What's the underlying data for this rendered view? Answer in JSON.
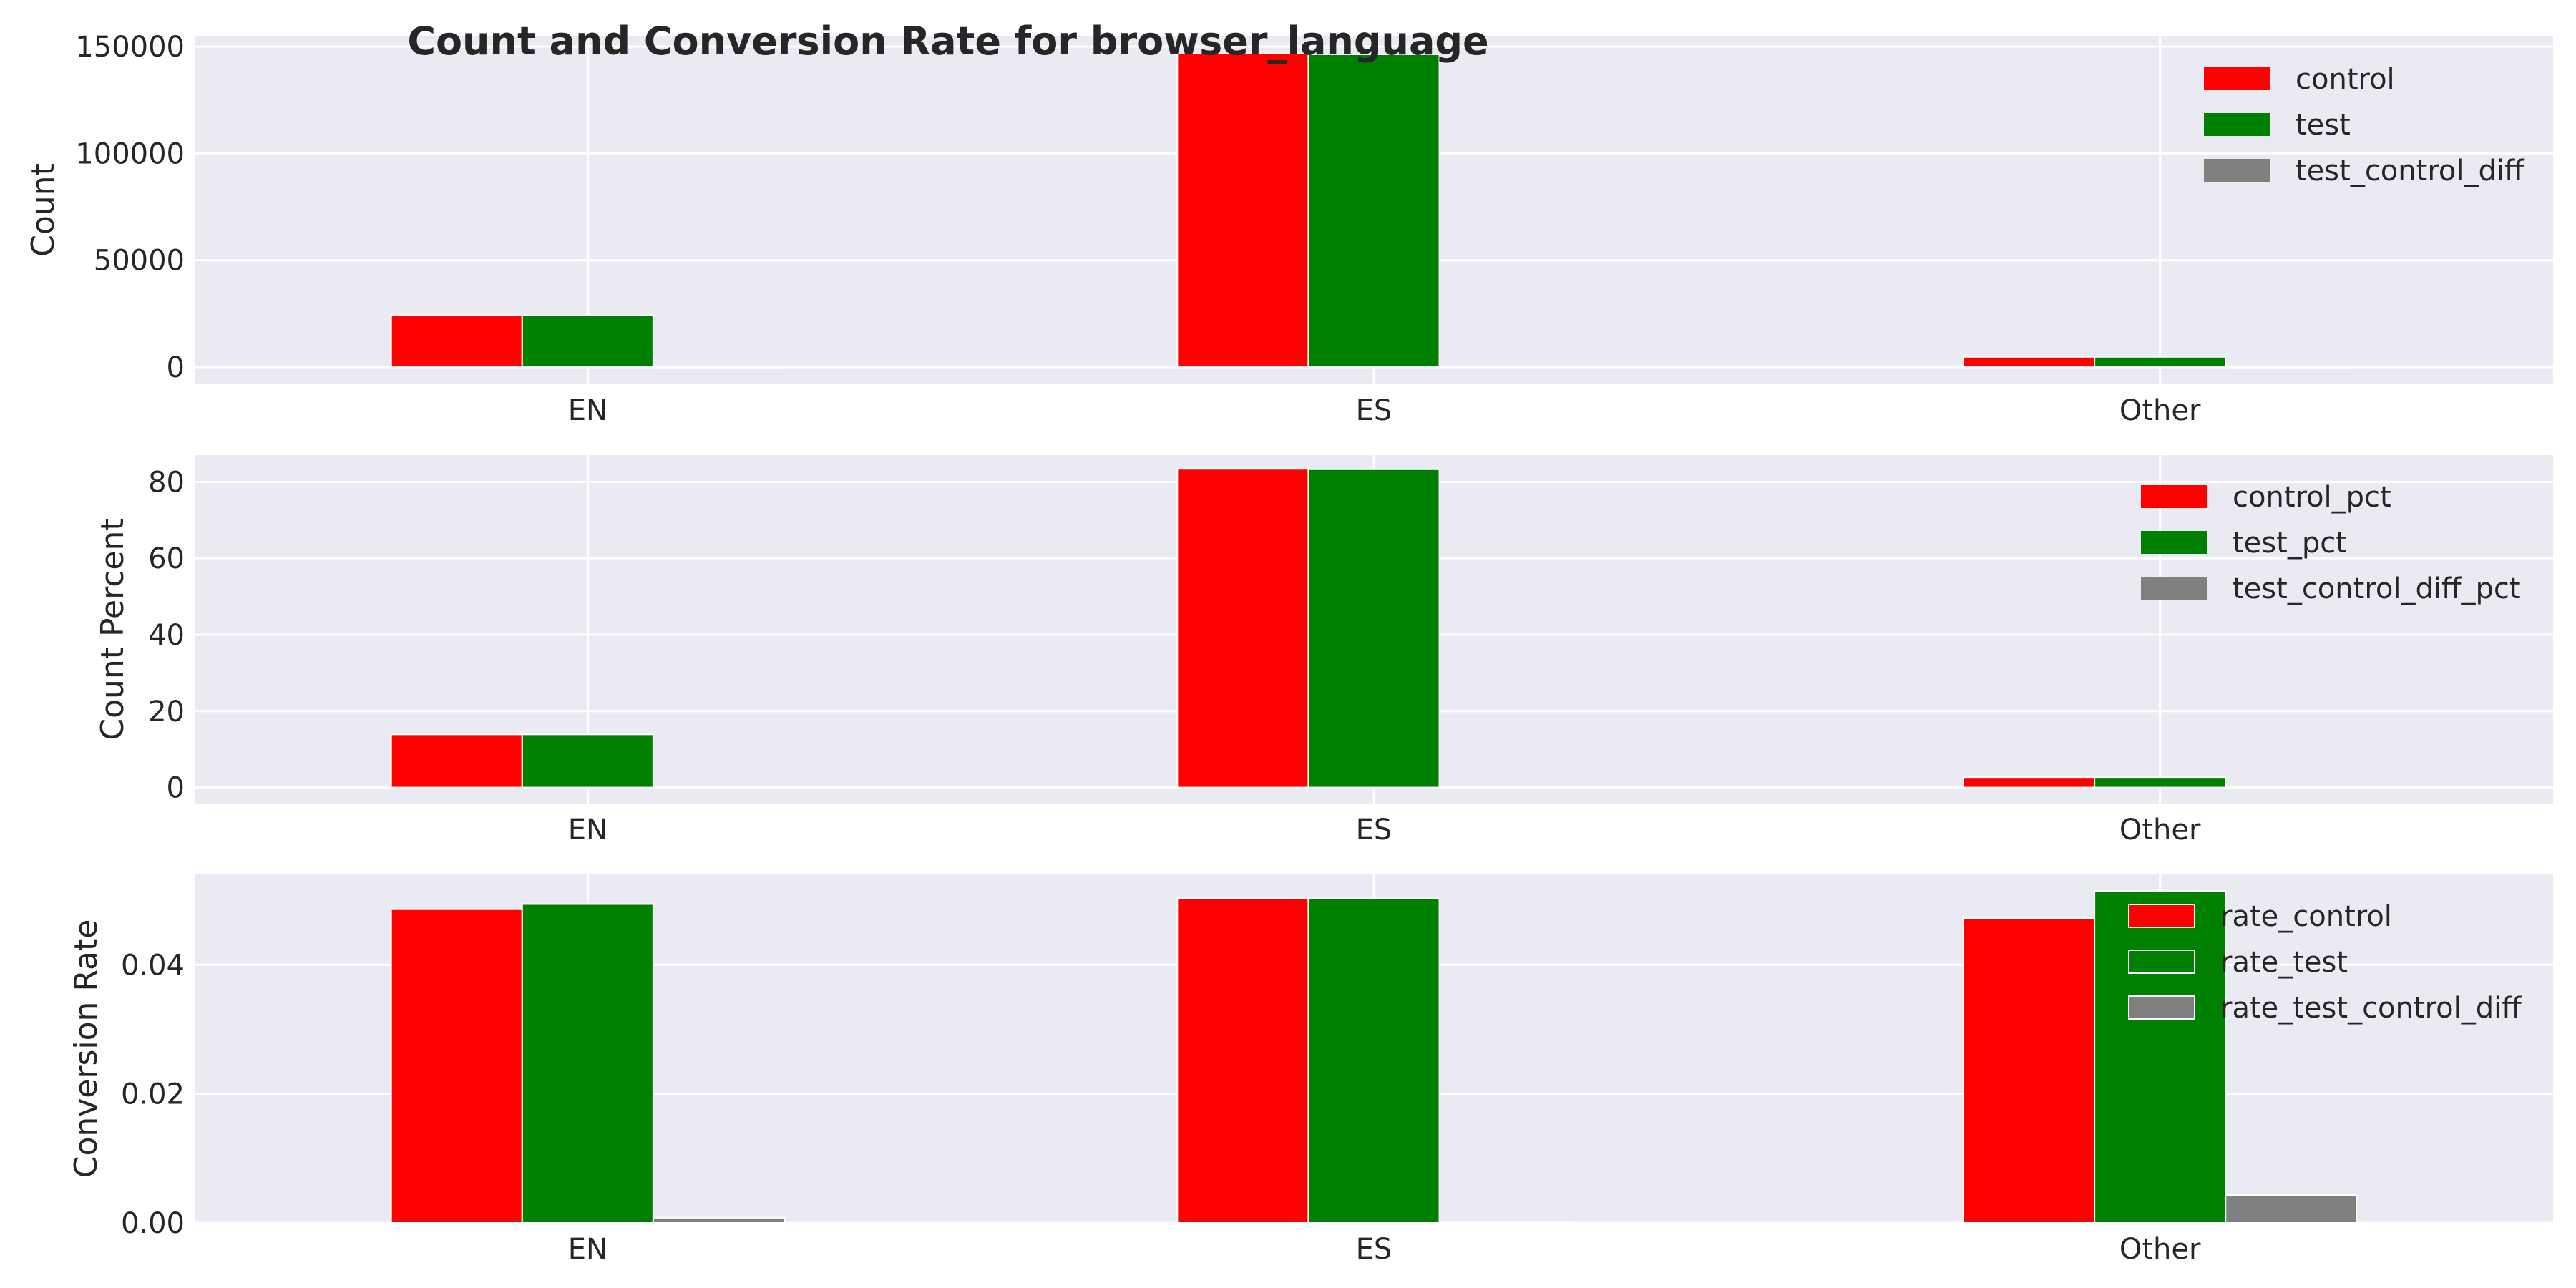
{
  "title": "Count and Conversion Rate for browser_language",
  "colors": {
    "background": "#eaeaf2",
    "grid": "#ffffff",
    "control": "#ff0000",
    "test": "#008000",
    "diff": "#808080"
  },
  "chart_data": [
    {
      "type": "bar",
      "categories": [
        "EN",
        "ES",
        "Other"
      ],
      "ylabel": "Count",
      "ylim": [
        -8000,
        155000
      ],
      "yticks": [
        0,
        50000,
        100000,
        150000
      ],
      "ytick_labels": [
        "0",
        "50000",
        "100000",
        "150000"
      ],
      "grid": true,
      "legend_position": "top-right",
      "series": [
        {
          "name": "control",
          "values": [
            24300,
            146700,
            4800
          ]
        },
        {
          "name": "test",
          "values": [
            24300,
            146300,
            4800
          ]
        },
        {
          "name": "test_control_diff",
          "values": [
            0,
            400,
            0
          ]
        }
      ]
    },
    {
      "type": "bar",
      "categories": [
        "EN",
        "ES",
        "Other"
      ],
      "ylabel": "Count Percent",
      "ylim": [
        -4.2,
        87
      ],
      "yticks": [
        0,
        20,
        40,
        60,
        80
      ],
      "ytick_labels": [
        "0",
        "20",
        "40",
        "60",
        "80"
      ],
      "grid": true,
      "legend_position": "top-right",
      "series": [
        {
          "name": "control_pct",
          "values": [
            13.9,
            83.4,
            2.7
          ]
        },
        {
          "name": "test_pct",
          "values": [
            13.9,
            83.3,
            2.7
          ]
        },
        {
          "name": "test_control_diff_pct",
          "values": [
            0,
            0.1,
            0
          ]
        }
      ]
    },
    {
      "type": "bar",
      "categories": [
        "EN",
        "ES",
        "Other"
      ],
      "ylabel": "Conversion Rate",
      "ylim": [
        0,
        0.054
      ],
      "yticks": [
        0,
        0.02,
        0.04
      ],
      "ytick_labels": [
        "0.00",
        "0.02",
        "0.04"
      ],
      "grid": true,
      "legend_position": "top-right",
      "series": [
        {
          "name": "rate_control",
          "values": [
            0.0486,
            0.0503,
            0.0472
          ]
        },
        {
          "name": "rate_test",
          "values": [
            0.0494,
            0.0503,
            0.0514
          ]
        },
        {
          "name": "rate_test_control_diff",
          "values": [
            0.0008,
            0.0001,
            0.0043
          ]
        }
      ]
    }
  ]
}
